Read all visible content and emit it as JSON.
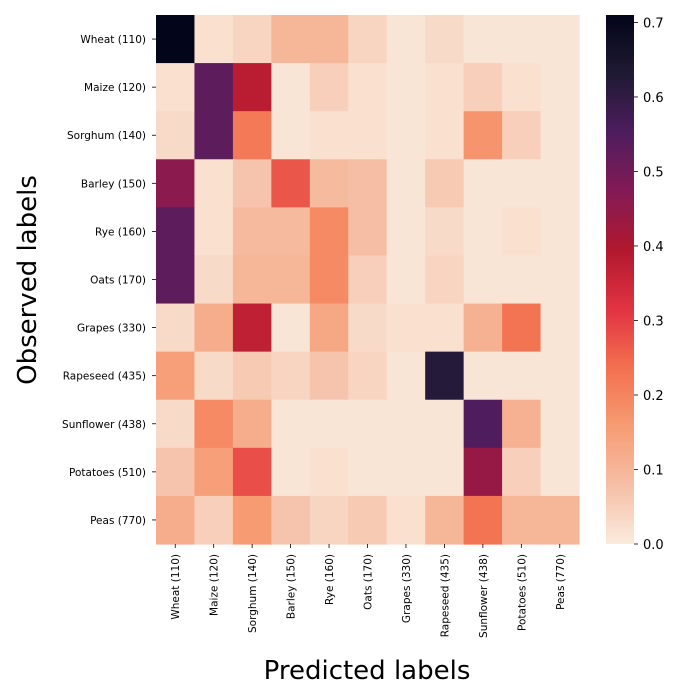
{
  "chart_data": {
    "type": "heatmap",
    "title": "",
    "xlabel": "Predicted labels",
    "ylabel": "Observed labels",
    "x_categories": [
      "Wheat (110)",
      "Maize (120)",
      "Sorghum (140)",
      "Barley (150)",
      "Rye (160)",
      "Oats (170)",
      "Grapes (330)",
      "Rapeseed (435)",
      "Sunflower (438)",
      "Potatoes (510)",
      "Peas (770)"
    ],
    "y_categories": [
      "Wheat (110)",
      "Maize (120)",
      "Sorghum (140)",
      "Barley (150)",
      "Rye (160)",
      "Oats (170)",
      "Grapes (330)",
      "Rapeseed (435)",
      "Sunflower (438)",
      "Potatoes (510)",
      "Peas (770)"
    ],
    "values": [
      [
        0.71,
        0.02,
        0.04,
        0.1,
        0.1,
        0.04,
        0.01,
        0.03,
        0.01,
        0.01,
        0.01
      ],
      [
        0.02,
        0.53,
        0.38,
        0.01,
        0.05,
        0.02,
        0.01,
        0.02,
        0.05,
        0.02,
        0.01
      ],
      [
        0.03,
        0.53,
        0.22,
        0.01,
        0.02,
        0.02,
        0.01,
        0.02,
        0.17,
        0.05,
        0.01
      ],
      [
        0.46,
        0.02,
        0.07,
        0.27,
        0.09,
        0.08,
        0.01,
        0.06,
        0.01,
        0.01,
        0.01
      ],
      [
        0.53,
        0.02,
        0.09,
        0.09,
        0.19,
        0.08,
        0.01,
        0.03,
        0.01,
        0.02,
        0.01
      ],
      [
        0.53,
        0.03,
        0.1,
        0.1,
        0.19,
        0.05,
        0.01,
        0.04,
        0.01,
        0.01,
        0.01
      ],
      [
        0.03,
        0.12,
        0.37,
        0.01,
        0.13,
        0.03,
        0.02,
        0.02,
        0.11,
        0.23,
        0.01
      ],
      [
        0.15,
        0.03,
        0.06,
        0.04,
        0.07,
        0.04,
        0.01,
        0.62,
        0.01,
        0.01,
        0.01
      ],
      [
        0.03,
        0.19,
        0.12,
        0.01,
        0.01,
        0.01,
        0.01,
        0.01,
        0.55,
        0.11,
        0.01
      ],
      [
        0.07,
        0.15,
        0.28,
        0.01,
        0.02,
        0.01,
        0.01,
        0.01,
        0.44,
        0.05,
        0.01
      ],
      [
        0.12,
        0.05,
        0.16,
        0.07,
        0.04,
        0.06,
        0.02,
        0.1,
        0.23,
        0.1,
        0.1
      ]
    ],
    "colorbar": {
      "vmin": 0.0,
      "vmax": 0.71,
      "ticks": [
        "0.0",
        "0.1",
        "0.2",
        "0.3",
        "0.4",
        "0.5",
        "0.6",
        "0.7"
      ],
      "tick_values": [
        0.0,
        0.1,
        0.2,
        0.3,
        0.4,
        0.5,
        0.6,
        0.7
      ]
    },
    "colormap": {
      "name": "rocket_r",
      "stops": [
        "#faebdd",
        "#f6bfa6",
        "#f69c73",
        "#f3704f",
        "#e13342",
        "#b1182e",
        "#831a55",
        "#4e1d5e",
        "#1e1a33",
        "#03051a"
      ]
    }
  }
}
